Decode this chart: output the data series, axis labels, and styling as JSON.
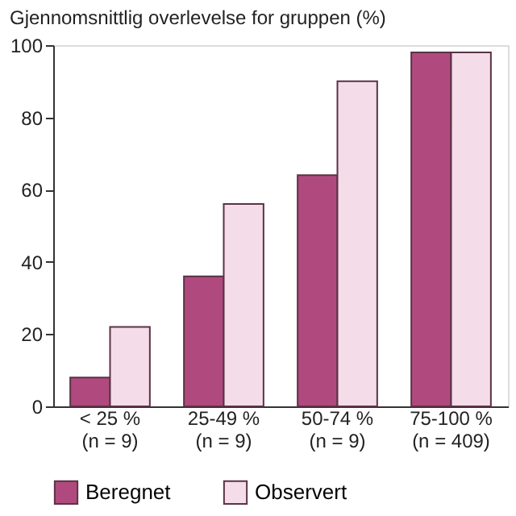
{
  "chart_data": {
    "type": "bar",
    "title": "Gjennomsnittlig overlevelse for gruppen (%)",
    "categories": [
      "< 25 %\n(n = 9)",
      "25-49 %\n(n = 9)",
      "50-74 %\n(n = 9)",
      "75-100 %\n(n = 409)"
    ],
    "series": [
      {
        "name": "Beregnet",
        "color": "#b04a7e",
        "values": [
          8,
          36,
          64,
          98
        ]
      },
      {
        "name": "Observert",
        "color": "#f4dde8",
        "values": [
          22,
          56,
          90,
          98
        ]
      }
    ],
    "ylim": [
      0,
      100
    ],
    "yticks": [
      0,
      20,
      40,
      60,
      80,
      100
    ],
    "grid": false,
    "legend": "bottom"
  }
}
